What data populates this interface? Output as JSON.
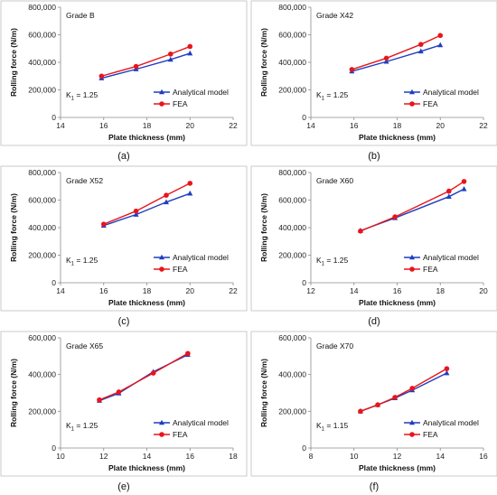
{
  "chart_data": [
    {
      "type": "line",
      "panel_label": "(a)",
      "grade": "Grade B",
      "k_label": "K",
      "k_subscript": "1",
      "k_value": " = 1.25",
      "xlabel": "Plate thickness (mm)",
      "ylabel": "Rolling force  (N/m)",
      "xlim": [
        14,
        22
      ],
      "xticks": [
        14,
        16,
        18,
        20,
        22
      ],
      "xtick_labels": [
        "14",
        "16",
        "18",
        "20",
        "22"
      ],
      "ylim": [
        0,
        800000
      ],
      "yticks": [
        0,
        200000,
        400000,
        600000,
        800000
      ],
      "ytick_labels": [
        "0",
        "200,000",
        "400,000",
        "600,000",
        "800,000"
      ],
      "series": [
        {
          "name": "Analytical model",
          "color": "#1f3fbf",
          "marker": "triangle",
          "x": [
            15.9,
            17.5,
            19.1,
            20.0
          ],
          "y": [
            285000,
            350000,
            420000,
            465000
          ]
        },
        {
          "name": "FEA",
          "color": "#e8151b",
          "marker": "circle",
          "x": [
            15.9,
            17.5,
            19.1,
            20.0
          ],
          "y": [
            300000,
            370000,
            460000,
            515000
          ]
        }
      ]
    },
    {
      "type": "line",
      "panel_label": "(b)",
      "grade": "Grade X42",
      "k_label": "K",
      "k_subscript": "1",
      "k_value": " = 1.25",
      "xlabel": "Plate thickness (mm)",
      "ylabel": "Rolling force  (N/m)",
      "xlim": [
        14,
        22
      ],
      "xticks": [
        14,
        16,
        18,
        20,
        22
      ],
      "xtick_labels": [
        "14",
        "16",
        "18",
        "20",
        "22"
      ],
      "ylim": [
        0,
        800000
      ],
      "yticks": [
        0,
        200000,
        400000,
        600000,
        800000
      ],
      "ytick_labels": [
        "0",
        "200,000",
        "400,000",
        "600,000",
        "800,000"
      ],
      "series": [
        {
          "name": "Analytical model",
          "color": "#1f3fbf",
          "marker": "triangle",
          "x": [
            15.9,
            17.5,
            19.1,
            20.0
          ],
          "y": [
            335000,
            405000,
            480000,
            525000
          ]
        },
        {
          "name": "FEA",
          "color": "#e8151b",
          "marker": "circle",
          "x": [
            15.9,
            17.5,
            19.1,
            20.0
          ],
          "y": [
            348000,
            430000,
            530000,
            595000
          ]
        }
      ]
    },
    {
      "type": "line",
      "panel_label": "(c)",
      "grade": "Grade X52",
      "k_label": "K",
      "k_subscript": "1",
      "k_value": " = 1.25",
      "xlabel": "Plate thickness (mm)",
      "ylabel": "Rolling force  (N/m)",
      "xlim": [
        14,
        22
      ],
      "xticks": [
        14,
        16,
        18,
        20,
        22
      ],
      "xtick_labels": [
        "14",
        "16",
        "18",
        "20",
        "22"
      ],
      "ylim": [
        0,
        800000
      ],
      "yticks": [
        0,
        200000,
        400000,
        600000,
        800000
      ],
      "ytick_labels": [
        "0",
        "200,000",
        "400,000",
        "600,000",
        "800,000"
      ],
      "series": [
        {
          "name": "Analytical model",
          "color": "#1f3fbf",
          "marker": "triangle",
          "x": [
            16.0,
            17.5,
            18.9,
            20.0
          ],
          "y": [
            415000,
            495000,
            585000,
            648000
          ]
        },
        {
          "name": "FEA",
          "color": "#e8151b",
          "marker": "circle",
          "x": [
            16.0,
            17.5,
            18.9,
            20.0
          ],
          "y": [
            425000,
            520000,
            635000,
            722000
          ]
        }
      ]
    },
    {
      "type": "line",
      "panel_label": "(d)",
      "grade": "Grade X60",
      "k_label": "K",
      "k_subscript": "1",
      "k_value": " = 1.25",
      "xlabel": "Plate thickness (mm)",
      "ylabel": "Rolling force  (N/m)",
      "xlim": [
        12,
        20
      ],
      "xticks": [
        12,
        14,
        16,
        18,
        20
      ],
      "xtick_labels": [
        "12",
        "14",
        "16",
        "18",
        "20"
      ],
      "ylim": [
        0,
        800000
      ],
      "yticks": [
        0,
        200000,
        400000,
        600000,
        800000
      ],
      "ytick_labels": [
        "0",
        "200,000",
        "400,000",
        "600,000",
        "800,000"
      ],
      "series": [
        {
          "name": "Analytical model",
          "color": "#1f3fbf",
          "marker": "triangle",
          "x": [
            14.3,
            15.9,
            18.4,
            19.1
          ],
          "y": [
            378000,
            470000,
            625000,
            680000
          ]
        },
        {
          "name": "FEA",
          "color": "#e8151b",
          "marker": "circle",
          "x": [
            14.3,
            15.9,
            18.4,
            19.1
          ],
          "y": [
            375000,
            478000,
            665000,
            735000
          ]
        }
      ]
    },
    {
      "type": "line",
      "panel_label": "(e)",
      "grade": "Grade X65",
      "k_label": "K",
      "k_subscript": "1",
      "k_value": " = 1.25",
      "xlabel": "Plate thickness (mm)",
      "ylabel": "Rolling force  (N/m)",
      "xlim": [
        10,
        18
      ],
      "xticks": [
        10,
        12,
        14,
        16,
        18
      ],
      "xtick_labels": [
        "10",
        "12",
        "14",
        "16",
        "18"
      ],
      "ylim": [
        0,
        600000
      ],
      "yticks": [
        0,
        200000,
        400000,
        600000
      ],
      "ytick_labels": [
        "0",
        "200,000",
        "400,000",
        "600,000"
      ],
      "series": [
        {
          "name": "Analytical model",
          "color": "#1f3fbf",
          "marker": "triangle",
          "x": [
            11.8,
            12.7,
            14.3,
            15.9
          ],
          "y": [
            258000,
            298000,
            415000,
            508000
          ]
        },
        {
          "name": "FEA",
          "color": "#e8151b",
          "marker": "circle",
          "x": [
            11.8,
            12.7,
            14.3,
            15.9
          ],
          "y": [
            262000,
            305000,
            408000,
            515000
          ]
        }
      ]
    },
    {
      "type": "line",
      "panel_label": "(f)",
      "grade": "Grade X70",
      "k_label": "K",
      "k_subscript": "1",
      "k_value": " = 1.15",
      "xlabel": "Plate thickness (mm)",
      "ylabel": "Rolling force  (N/m)",
      "xlim": [
        8,
        16
      ],
      "xticks": [
        8,
        10,
        12,
        14,
        16
      ],
      "xtick_labels": [
        "8",
        "10",
        "12",
        "14",
        "16"
      ],
      "ylim": [
        0,
        600000
      ],
      "yticks": [
        0,
        200000,
        400000,
        600000
      ],
      "ytick_labels": [
        "0",
        "200,000",
        "400,000",
        "600,000"
      ],
      "series": [
        {
          "name": "Analytical model",
          "color": "#1f3fbf",
          "marker": "triangle",
          "x": [
            10.3,
            11.1,
            11.9,
            12.7,
            14.3
          ],
          "y": [
            200000,
            235000,
            272000,
            315000,
            408000
          ]
        },
        {
          "name": "FEA",
          "color": "#e8151b",
          "marker": "circle",
          "x": [
            10.3,
            11.1,
            11.9,
            12.7,
            14.3
          ],
          "y": [
            200000,
            235000,
            276000,
            325000,
            432000
          ]
        }
      ]
    }
  ]
}
